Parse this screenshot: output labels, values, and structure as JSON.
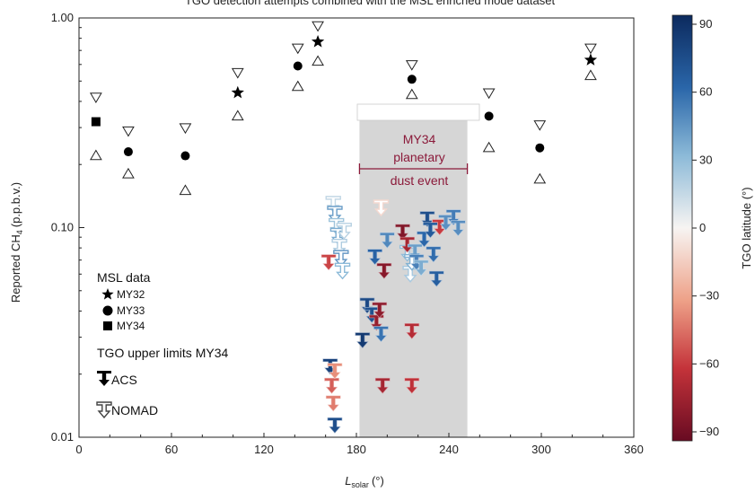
{
  "chart_data": {
    "type": "scatter",
    "title": "TGO detection attempts combined with the MSL enriched mode dataset",
    "xlabel": "L",
    "xlabel_sub": "solar",
    "xlabel_unit": "(°)",
    "ylabel": "Reported CH",
    "ylabel_sub": "4",
    "ylabel_unit": "(p.p.b.v.)",
    "xlim": [
      0,
      360
    ],
    "ylim": [
      0.01,
      1.0
    ],
    "yscale": "log",
    "x_ticks": [
      "0",
      "60",
      "120",
      "180",
      "240",
      "300",
      "360"
    ],
    "y_ticks": [
      "0.01",
      "0.10",
      "1.00"
    ],
    "colorbar": {
      "label": "TGO latitude (°)",
      "range": [
        -90,
        90
      ],
      "ticks": [
        "90",
        "60",
        "30",
        "0",
        "−30",
        "−60",
        "−90"
      ]
    },
    "shaded_region": {
      "x_range": [
        182,
        252
      ],
      "color": "#d6d6d6"
    },
    "annotation": {
      "line1": "MY34",
      "line2": "planetary",
      "line3": "dust event",
      "arrow_x": [
        182,
        252
      ]
    },
    "legend": {
      "msl_title": "MSL data",
      "msl_items": [
        {
          "marker": "star",
          "label": "MY32"
        },
        {
          "marker": "circle",
          "label": "MY33"
        },
        {
          "marker": "square",
          "label": "MY34"
        }
      ],
      "tgo_title": "TGO upper limits MY34",
      "tgo_items": [
        {
          "marker": "acs",
          "label": "ACS"
        },
        {
          "marker": "nomad",
          "label": "NOMAD"
        }
      ]
    },
    "msl_series": [
      {
        "name": "MY32",
        "marker": "star",
        "points": [
          {
            "x": 103,
            "y": 0.44,
            "hi": 0.55,
            "lo": 0.34
          },
          {
            "x": 155,
            "y": 0.77,
            "hi": 0.92,
            "lo": 0.62
          },
          {
            "x": 332,
            "y": 0.63,
            "hi": 0.72,
            "lo": 0.53
          }
        ]
      },
      {
        "name": "MY33",
        "marker": "circle",
        "points": [
          {
            "x": 32,
            "y": 0.23,
            "hi": 0.29,
            "lo": 0.18
          },
          {
            "x": 69,
            "y": 0.22,
            "hi": 0.3,
            "lo": 0.15
          },
          {
            "x": 142,
            "y": 0.59,
            "hi": 0.72,
            "lo": 0.47
          },
          {
            "x": 216,
            "y": 0.51,
            "hi": 0.6,
            "lo": 0.43
          },
          {
            "x": 266,
            "y": 0.34,
            "hi": 0.44,
            "lo": 0.24
          },
          {
            "x": 299,
            "y": 0.24,
            "hi": 0.31,
            "lo": 0.17
          }
        ]
      },
      {
        "name": "MY34",
        "marker": "square",
        "points": [
          {
            "x": 11,
            "y": 0.32,
            "hi": 0.42,
            "lo": 0.22
          }
        ]
      }
    ],
    "tgo_series": [
      {
        "name": "ACS",
        "points": [
          {
            "x": 163,
            "y": 0.021,
            "lat": 78
          },
          {
            "x": 164,
            "y": 0.017,
            "lat": -48
          },
          {
            "x": 165,
            "y": 0.014,
            "lat": -40
          },
          {
            "x": 166,
            "y": 0.011,
            "lat": 72
          },
          {
            "x": 166,
            "y": 0.02,
            "lat": -35
          },
          {
            "x": 162,
            "y": 0.066,
            "lat": -55
          },
          {
            "x": 184,
            "y": 0.028,
            "lat": 82
          },
          {
            "x": 187,
            "y": 0.041,
            "lat": 75
          },
          {
            "x": 190,
            "y": 0.037,
            "lat": 70
          },
          {
            "x": 192,
            "y": 0.07,
            "lat": 62
          },
          {
            "x": 193,
            "y": 0.034,
            "lat": -75
          },
          {
            "x": 195,
            "y": 0.039,
            "lat": -78
          },
          {
            "x": 196,
            "y": 0.03,
            "lat": 55
          },
          {
            "x": 197,
            "y": 0.017,
            "lat": -70
          },
          {
            "x": 198,
            "y": 0.06,
            "lat": -80
          },
          {
            "x": 200,
            "y": 0.084,
            "lat": 48
          },
          {
            "x": 210,
            "y": 0.092,
            "lat": -82
          },
          {
            "x": 213,
            "y": 0.08,
            "lat": -70
          },
          {
            "x": 216,
            "y": 0.031,
            "lat": -65
          },
          {
            "x": 216,
            "y": 0.017,
            "lat": -62
          },
          {
            "x": 218,
            "y": 0.074,
            "lat": 40
          },
          {
            "x": 219,
            "y": 0.066,
            "lat": 50
          },
          {
            "x": 222,
            "y": 0.062,
            "lat": 35
          },
          {
            "x": 224,
            "y": 0.085,
            "lat": 60
          },
          {
            "x": 226,
            "y": 0.106,
            "lat": 72
          },
          {
            "x": 228,
            "y": 0.094,
            "lat": 66
          },
          {
            "x": 230,
            "y": 0.072,
            "lat": 58
          },
          {
            "x": 232,
            "y": 0.055,
            "lat": 64
          },
          {
            "x": 234,
            "y": 0.097,
            "lat": -58
          },
          {
            "x": 238,
            "y": 0.102,
            "lat": 45
          },
          {
            "x": 243,
            "y": 0.108,
            "lat": 52
          },
          {
            "x": 246,
            "y": 0.096,
            "lat": 46
          }
        ]
      },
      {
        "name": "NOMAD",
        "points": [
          {
            "x": 165,
            "y": 0.125,
            "lat": 15
          },
          {
            "x": 166,
            "y": 0.112,
            "lat": 40
          },
          {
            "x": 167,
            "y": 0.098,
            "lat": 25
          },
          {
            "x": 168,
            "y": 0.088,
            "lat": 35
          },
          {
            "x": 169,
            "y": 0.078,
            "lat": 20
          },
          {
            "x": 170,
            "y": 0.069,
            "lat": 42
          },
          {
            "x": 171,
            "y": 0.06,
            "lat": 30
          },
          {
            "x": 172,
            "y": 0.093,
            "lat": 18
          },
          {
            "x": 196,
            "y": 0.12,
            "lat": -10
          },
          {
            "x": 213,
            "y": 0.073,
            "lat": 28
          },
          {
            "x": 215,
            "y": 0.058,
            "lat": 22
          },
          {
            "x": 216,
            "y": 0.066,
            "lat": 33
          }
        ]
      }
    ]
  }
}
